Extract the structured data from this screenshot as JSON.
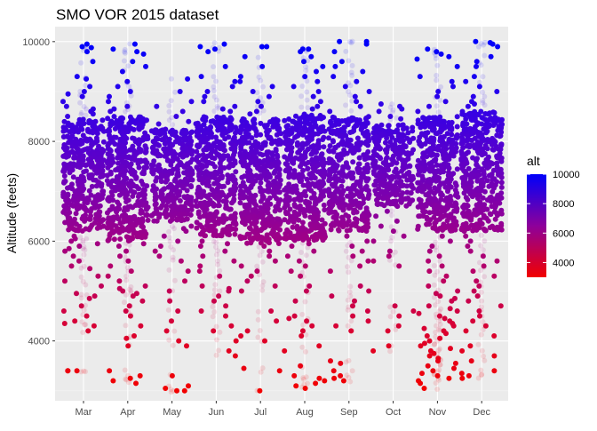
{
  "chart_data": {
    "type": "scatter",
    "title": "SMO VOR 2015 dataset",
    "xlabel": "",
    "ylabel": "Altitude (feets)",
    "categories": [
      "Mar",
      "Apr",
      "May",
      "Jun",
      "Jul",
      "Aug",
      "Sep",
      "Oct",
      "Nov",
      "Dec"
    ],
    "ylim": [
      2800,
      10300
    ],
    "yticks": [
      4000,
      6000,
      8000,
      10000
    ],
    "grid": true,
    "color_scale": {
      "variable": "alt",
      "low_color": "#ff0000",
      "high_color": "#0000ff",
      "range": [
        3000,
        10000
      ],
      "legend_ticks": [
        4000,
        6000,
        8000,
        10000
      ],
      "legend_placement": "right"
    },
    "series": [
      {
        "category": "Mar",
        "core_min": 6200,
        "core_max": 8450,
        "points": [
          9950,
          9880,
          9900,
          9800,
          9600,
          9300,
          9250,
          9100,
          9000,
          8950,
          8900,
          8800,
          8700,
          8650,
          8600,
          8550,
          8500,
          6100,
          6050,
          6000,
          5950,
          5900,
          5850,
          5800,
          5700,
          5600,
          5500,
          5450,
          5300,
          5200,
          5100,
          4950,
          4900,
          4850,
          4700,
          4600,
          4500,
          4400,
          4350,
          4300,
          4200,
          3400,
          3400,
          3400
        ]
      },
      {
        "category": "Apr",
        "core_min": 6000,
        "core_max": 8500,
        "points": [
          9950,
          9850,
          9800,
          9750,
          9600,
          9500,
          9400,
          9200,
          9100,
          9000,
          8900,
          8800,
          8700,
          8650,
          8600,
          5950,
          5900,
          5800,
          5700,
          5600,
          5500,
          5400,
          5300,
          5200,
          5100,
          5050,
          5000,
          4950,
          4900,
          4800,
          4700,
          4600,
          4500,
          4300,
          4100,
          4050,
          3900,
          3400,
          3300,
          3250,
          3200,
          3150
        ]
      },
      {
        "category": "May",
        "core_min": 6400,
        "core_max": 8250,
        "points": [
          9250,
          9000,
          8800,
          8700,
          8600,
          8500,
          8400,
          8350,
          6300,
          6250,
          6200,
          6100,
          6000,
          5900,
          5800,
          5700,
          5600,
          5400,
          5200,
          5000,
          4800,
          4600,
          4400,
          4200,
          4000,
          3900,
          3300,
          3100,
          3050,
          3000,
          3000
        ]
      },
      {
        "category": "Jun",
        "core_min": 6100,
        "core_max": 8500,
        "points": [
          9950,
          9900,
          9850,
          9800,
          9500,
          9300,
          9200,
          9100,
          9000,
          8900,
          8800,
          8700,
          8650,
          8600,
          6000,
          5950,
          5900,
          5800,
          5700,
          5600,
          5500,
          5400,
          5300,
          5100,
          5050,
          5000,
          4900,
          4800,
          4700,
          4600,
          4500,
          4300,
          4200,
          4000,
          3800,
          3700
        ]
      },
      {
        "category": "Jul",
        "core_min": 5950,
        "core_max": 8450,
        "points": [
          9900,
          9900,
          9700,
          9500,
          9300,
          9200,
          9100,
          9000,
          8900,
          8800,
          8700,
          8600,
          8550,
          5900,
          5800,
          5700,
          5600,
          5500,
          5400,
          5300,
          5200,
          5100,
          5000,
          4600,
          4400,
          4200,
          4100,
          4000,
          3450,
          3400,
          3000
        ]
      },
      {
        "category": "Aug",
        "core_min": 6000,
        "core_max": 8550,
        "points": [
          9850,
          9850,
          9800,
          9700,
          9600,
          9500,
          9400,
          9300,
          9200,
          9100,
          9000,
          8900,
          8800,
          8700,
          8650,
          5950,
          5900,
          5800,
          5700,
          5600,
          5500,
          5400,
          5300,
          5100,
          5000,
          4800,
          4500,
          4450,
          4400,
          4300,
          4200,
          4100,
          3900,
          3800,
          3500,
          3300,
          3250,
          3200,
          3150,
          3100,
          3050
        ]
      },
      {
        "category": "Sep",
        "core_min": 6200,
        "core_max": 8500,
        "points": [
          10000,
          10000,
          9950,
          9800,
          9600,
          9500,
          9400,
          9300,
          9200,
          9100,
          9000,
          8900,
          8800,
          8700,
          8600,
          6100,
          6000,
          5900,
          5800,
          5700,
          5600,
          5500,
          5400,
          5100,
          5000,
          4900,
          4800,
          4700,
          4600,
          4500,
          4400,
          4300,
          4200,
          3600,
          3550,
          3400,
          3300,
          3250,
          3200
        ]
      },
      {
        "category": "Oct",
        "core_min": 6700,
        "core_max": 8350,
        "points": [
          8750,
          8700,
          8650,
          8600,
          8500,
          8450,
          6600,
          6500,
          6400,
          6300,
          6200,
          6100,
          6000,
          5800,
          5700,
          5600,
          5500,
          4700,
          4600,
          4500,
          4300,
          4200,
          3900,
          3800
        ]
      },
      {
        "category": "Nov",
        "core_min": 6200,
        "core_max": 8500,
        "points": [
          9850,
          9800,
          9750,
          9700,
          9650,
          9500,
          9300,
          9200,
          9100,
          9000,
          8900,
          8800,
          8700,
          8600,
          6100,
          6000,
          5900,
          5800,
          5700,
          5600,
          5500,
          5400,
          5300,
          5200,
          5100,
          5000,
          4950,
          4900,
          4850,
          4800,
          4700,
          4650,
          4600,
          4550,
          4500,
          4450,
          4400,
          4350,
          4300,
          4250,
          4200,
          4150,
          4100,
          4050,
          4000,
          3950,
          3900,
          3850,
          3800,
          3750,
          3700,
          3650,
          3600,
          3550,
          3500,
          3450,
          3400,
          3350,
          3300,
          3250,
          3200,
          3150,
          3050
        ]
      },
      {
        "category": "Dec",
        "core_min": 6200,
        "core_max": 8600,
        "points": [
          10000,
          9980,
          9950,
          9900,
          9700,
          9600,
          9500,
          9300,
          9200,
          9100,
          9000,
          8900,
          8800,
          8750,
          8700,
          6100,
          6000,
          5900,
          5800,
          5700,
          5600,
          5500,
          5400,
          5300,
          5200,
          5100,
          5000,
          4900,
          4800,
          4700,
          4600,
          4500,
          4400,
          4300,
          4200,
          4100,
          3900,
          3800,
          3700,
          3600,
          3400,
          3350,
          3300,
          3250
        ]
      }
    ]
  }
}
